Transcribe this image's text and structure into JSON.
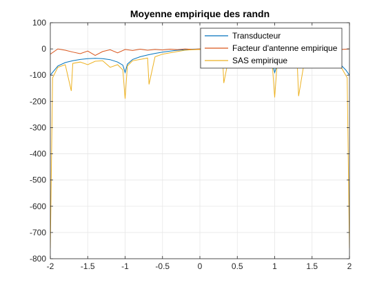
{
  "chart_data": {
    "type": "line",
    "title": "Moyenne empirique des randn",
    "xlabel": "",
    "ylabel": "",
    "xlim": [
      -2,
      2
    ],
    "ylim": [
      -800,
      100
    ],
    "xticks": [
      -2,
      -1.5,
      -1,
      -0.5,
      0,
      0.5,
      1,
      1.5,
      2
    ],
    "xtick_labels": [
      "-2",
      "-1.5",
      "-1",
      "-0.5",
      "0",
      "0.5",
      "1",
      "1.5",
      "2"
    ],
    "yticks": [
      -800,
      -700,
      -600,
      -500,
      -400,
      -300,
      -200,
      -100,
      0,
      100
    ],
    "ytick_labels": [
      "-800",
      "-700",
      "-600",
      "-500",
      "-400",
      "-300",
      "-200",
      "-100",
      "0",
      "100"
    ],
    "grid": true,
    "legend_position": "top-right",
    "series": [
      {
        "name": "Transducteur",
        "color": "#0072BD",
        "x": [
          -2.0,
          -1.9,
          -1.8,
          -1.7,
          -1.6,
          -1.5,
          -1.4,
          -1.3,
          -1.2,
          -1.1,
          -1.03,
          -1.0,
          -0.97,
          -0.9,
          -0.8,
          -0.7,
          -0.6,
          -0.5,
          -0.4,
          -0.3,
          -0.2,
          -0.1,
          0.0,
          0.1,
          0.2,
          0.3,
          0.4,
          0.5,
          0.6,
          0.7,
          0.8,
          0.9,
          0.97,
          1.0,
          1.03,
          1.1,
          1.2,
          1.3,
          1.4,
          1.5,
          1.6,
          1.7,
          1.8,
          1.9,
          1.95,
          2.0
        ],
        "y": [
          -100,
          -65,
          -52,
          -45,
          -40,
          -37,
          -36,
          -37,
          -41,
          -50,
          -62,
          -90,
          -58,
          -40,
          -30,
          -23,
          -17,
          -12,
          -8,
          -5,
          -3,
          -1,
          0,
          -1,
          -3,
          -5,
          -8,
          -12,
          -17,
          -23,
          -30,
          -40,
          -58,
          -90,
          -62,
          -50,
          -41,
          -37,
          -36,
          -37,
          -40,
          -45,
          -52,
          -65,
          -80,
          -100
        ]
      },
      {
        "name": "Facteur d'antenne empirique",
        "color": "#D95319",
        "x": [
          -2.0,
          -1.9,
          -1.8,
          -1.7,
          -1.6,
          -1.5,
          -1.4,
          -1.3,
          -1.2,
          -1.1,
          -1.0,
          -0.9,
          -0.8,
          -0.7,
          -0.6,
          -0.5,
          -0.4,
          -0.3,
          -0.2,
          -0.1,
          0.0,
          0.1,
          0.2,
          0.3,
          0.4,
          0.5,
          0.6,
          0.7,
          0.8,
          0.9,
          1.0,
          1.1,
          1.2,
          1.3,
          1.4,
          1.5,
          1.6,
          1.7,
          1.8,
          1.9,
          2.0
        ],
        "y": [
          -20,
          0,
          -5,
          -12,
          -18,
          -8,
          -25,
          -10,
          -3,
          -15,
          -2,
          -6,
          -1,
          -5,
          -2,
          -4,
          -1,
          -3,
          0,
          -2,
          0,
          -1,
          -3,
          0,
          -2,
          -1,
          -4,
          -2,
          0,
          -3,
          -1,
          -2,
          -4,
          -1,
          -3,
          -2,
          -5,
          -1,
          -3,
          -2,
          0
        ]
      },
      {
        "name": "SAS empirique",
        "color": "#EDB120",
        "x": [
          -2.0,
          -1.97,
          -1.9,
          -1.8,
          -1.72,
          -1.7,
          -1.6,
          -1.5,
          -1.4,
          -1.3,
          -1.2,
          -1.1,
          -1.03,
          -1.0,
          -0.97,
          -0.9,
          -0.8,
          -0.7,
          -0.68,
          -0.6,
          -0.5,
          -0.4,
          -0.3,
          -0.2,
          -0.1,
          0.0,
          0.1,
          0.2,
          0.3,
          0.32,
          0.4,
          0.5,
          0.6,
          0.7,
          0.8,
          0.9,
          0.97,
          1.0,
          1.03,
          1.1,
          1.2,
          1.3,
          1.32,
          1.4,
          1.5,
          1.6,
          1.7,
          1.8,
          1.9,
          1.97,
          2.0
        ],
        "y": [
          -760,
          -110,
          -70,
          -60,
          -160,
          -55,
          -50,
          -60,
          -47,
          -45,
          -70,
          -60,
          -80,
          -190,
          -65,
          -45,
          -40,
          -35,
          -135,
          -30,
          -20,
          -15,
          -10,
          -5,
          -3,
          -2,
          -3,
          -5,
          -10,
          -130,
          -12,
          -15,
          -20,
          -25,
          -32,
          -42,
          -65,
          -185,
          -65,
          -50,
          -45,
          -40,
          -180,
          -42,
          -45,
          -50,
          -55,
          -62,
          -75,
          -110,
          -760
        ]
      }
    ]
  }
}
